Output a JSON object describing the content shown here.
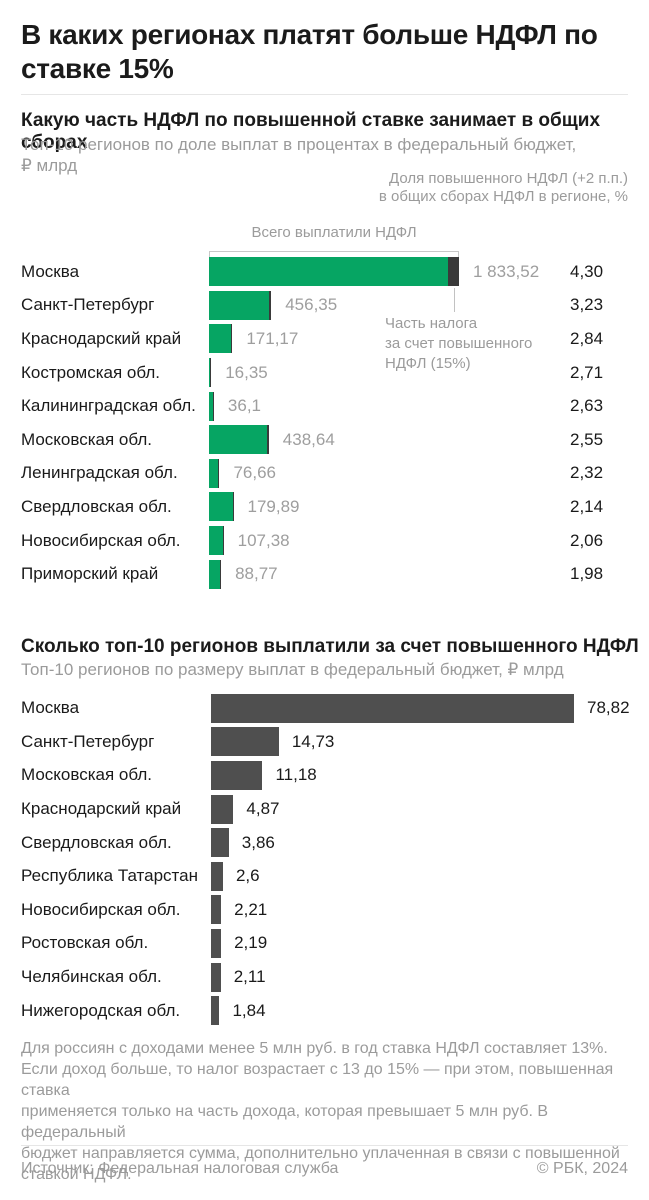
{
  "page": {
    "title": "В каких регионах платят больше НДФЛ по ставке 15%",
    "footer_note": "Для россиян с доходами менее 5 млн руб. в год ставка НДФЛ составляет 13%.\nЕсли доход больше, то налог возрастает с 13 до 15% — при этом, повышенная ставка\nприменяется только на часть дохода, которая превышает 5 млн руб. В федеральный\nбюджет направляется сумма, дополнительно уплаченная в связи с повышенной\nставкой НДФЛ.",
    "source": "Источник: Федеральная налоговая служба",
    "copyright": "© РБК, 2024"
  },
  "colors": {
    "green": "#06a563",
    "dark_tip": "#3a3a3a",
    "bar_gray": "#4f4f4f",
    "text_gray": "#9b9b9b",
    "text_black": "#1a1a1a"
  },
  "chart_data": [
    {
      "type": "bar",
      "title": "Какую часть НДФЛ по повышенной ставке занимает в общих сборах",
      "subtitle": "Топ-10 регионов по доле выплат в процентах в федеральный бюджет,\n₽ млрд",
      "right_axis_note": "Доля повышенного НДФЛ (+2 п.п.)\nв общих сборах НДФЛ в регионе, %",
      "bracket_label": "Всего выплатили НДФЛ",
      "callout": "Часть налога\nза счет повышенного\nНДФЛ (15%)",
      "unit": "₽ млрд",
      "legend_position": "none",
      "grid": false,
      "categories": [
        "Москва",
        "Санкт-Петербург",
        "Краснодарский край",
        "Костромская обл.",
        "Калининградская обл.",
        "Московская обл.",
        "Ленинградская обл.",
        "Свердловская обл.",
        "Новосибирская обл.",
        "Приморский край"
      ],
      "series": [
        {
          "name": "Всего выплатили НДФЛ, ₽ млрд",
          "values": [
            1833.52,
            456.35,
            171.17,
            16.35,
            36.1,
            438.64,
            76.66,
            179.89,
            107.38,
            88.77
          ]
        },
        {
          "name": "Доля повышенного НДФЛ (+2 п.п.) в общих сборах НДФЛ в регионе, %",
          "values": [
            4.3,
            3.23,
            2.84,
            2.71,
            2.63,
            2.55,
            2.32,
            2.14,
            2.06,
            1.98
          ]
        }
      ],
      "value_labels": [
        "1 833,52",
        "456,35",
        "171,17",
        "16,35",
        "36,1",
        "438,64",
        "76,66",
        "179,89",
        "107,38",
        "88,77"
      ],
      "pct_labels": [
        "4,30",
        "3,23",
        "2,84",
        "2,71",
        "2,63",
        "2,55",
        "2,32",
        "2,14",
        "2,06",
        "1,98"
      ],
      "xlim": [
        0,
        1833.52
      ]
    },
    {
      "type": "bar",
      "title": "Сколько топ-10 регионов выплатили за счет повышенного НДФЛ",
      "subtitle": "Топ-10 регионов по размеру выплат в федеральный бюджет, ₽ млрд",
      "unit": "₽ млрд",
      "legend_position": "none",
      "grid": false,
      "categories": [
        "Москва",
        "Санкт-Петербург",
        "Московская обл.",
        "Краснодарский край",
        "Свердловская обл.",
        "Республика Татарстан",
        "Новосибирская обл.",
        "Ростовская обл.",
        "Челябинская обл.",
        "Нижегородская обл."
      ],
      "values": [
        78.82,
        14.73,
        11.18,
        4.87,
        3.86,
        2.6,
        2.21,
        2.19,
        2.11,
        1.84
      ],
      "value_labels": [
        "78,82",
        "14,73",
        "11,18",
        "4,87",
        "3,86",
        "2,6",
        "2,21",
        "2,19",
        "2,11",
        "1,84"
      ],
      "xlim": [
        0,
        78.82
      ]
    }
  ]
}
